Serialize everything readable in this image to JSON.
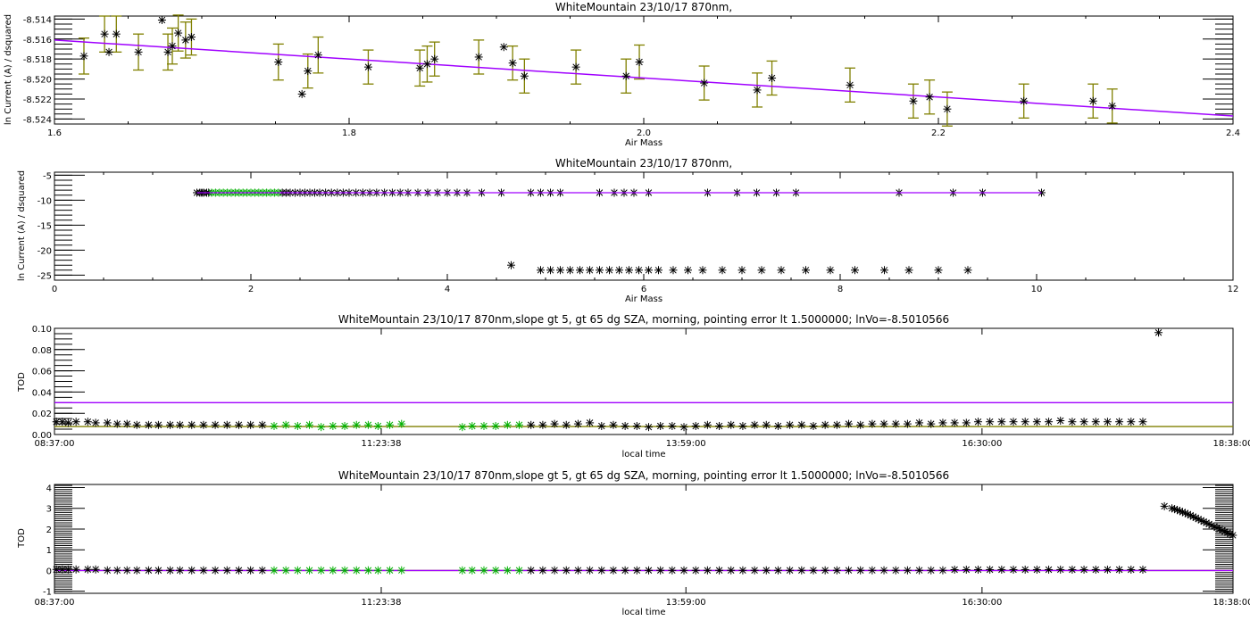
{
  "chart_data": [
    {
      "type": "scatter",
      "title": "WhiteMountain 23/10/17 870nm,",
      "xlabel": "Air Mass",
      "ylabel": "ln Current (A) / dsquared",
      "xlim": [
        1.6,
        2.4
      ],
      "ylim": [
        -8.5245,
        -8.5137
      ],
      "xticks": [
        {
          "v": 1.6,
          "label": "1.6"
        },
        {
          "v": 1.8,
          "label": "1.8"
        },
        {
          "v": 2.0,
          "label": "2.0"
        },
        {
          "v": 2.2,
          "label": "2.2"
        },
        {
          "v": 2.4,
          "label": "2.4"
        }
      ],
      "xminor": 0.05,
      "yticks": [
        {
          "v": -8.524,
          "label": "-8.524"
        },
        {
          "v": -8.522,
          "label": "-8.522"
        },
        {
          "v": -8.52,
          "label": "-8.520"
        },
        {
          "v": -8.518,
          "label": "-8.518"
        },
        {
          "v": -8.516,
          "label": "-8.516"
        },
        {
          "v": -8.514,
          "label": "-8.514"
        }
      ],
      "yminor": 0.0005,
      "right_ticks": true,
      "points": [
        [
          1.62,
          -8.5177,
          0.0018
        ],
        [
          1.634,
          -8.5155,
          0.0018
        ],
        [
          1.637,
          -8.5173,
          0
        ],
        [
          1.642,
          -8.5155,
          0.0018
        ],
        [
          1.657,
          -8.5173,
          0.0018
        ],
        [
          1.673,
          -8.5141,
          0
        ],
        [
          1.677,
          -8.5173,
          0.0018
        ],
        [
          1.68,
          -8.5167,
          0.0018
        ],
        [
          1.684,
          -8.5154,
          0.0018
        ],
        [
          1.689,
          -8.5161,
          0.0018
        ],
        [
          1.693,
          -8.5158,
          0.0018
        ],
        [
          1.752,
          -8.5183,
          0.0018
        ],
        [
          1.768,
          -8.5215,
          0
        ],
        [
          1.772,
          -8.5192,
          0.0017
        ],
        [
          1.779,
          -8.5176,
          0.0018
        ],
        [
          1.813,
          -8.5188,
          0.0017
        ],
        [
          1.848,
          -8.5189,
          0.0018
        ],
        [
          1.853,
          -8.5185,
          0.0018
        ],
        [
          1.858,
          -8.518,
          0.0017
        ],
        [
          1.888,
          -8.5178,
          0.0017
        ],
        [
          1.905,
          -8.5168,
          0
        ],
        [
          1.911,
          -8.5184,
          0.0017
        ],
        [
          1.919,
          -8.5197,
          0.0017
        ],
        [
          1.954,
          -8.5188,
          0.0017
        ],
        [
          1.988,
          -8.5197,
          0.0017
        ],
        [
          1.997,
          -8.5183,
          0.0017
        ],
        [
          2.041,
          -8.5204,
          0.0017
        ],
        [
          2.077,
          -8.5211,
          0.0017
        ],
        [
          2.087,
          -8.5199,
          0.0017
        ],
        [
          2.14,
          -8.5206,
          0.0017
        ],
        [
          2.183,
          -8.5222,
          0.0017
        ],
        [
          2.194,
          -8.5218,
          0.0017
        ],
        [
          2.206,
          -8.523,
          0.0017
        ],
        [
          2.258,
          -8.5222,
          0.0017
        ],
        [
          2.305,
          -8.5222,
          0.0017
        ],
        [
          2.318,
          -8.5227,
          0.0017
        ]
      ],
      "fit_line": [
        [
          1.6,
          -8.5161
        ],
        [
          2.4,
          -8.5237
        ]
      ]
    },
    {
      "type": "scatter",
      "title": "WhiteMountain 23/10/17 870nm,",
      "xlabel": "Air Mass",
      "ylabel": "ln Current (A) / dsquared",
      "xlim": [
        0,
        12
      ],
      "ylim": [
        -26,
        -4.4
      ],
      "xticks": [
        {
          "v": 0,
          "label": "0"
        },
        {
          "v": 2,
          "label": "2"
        },
        {
          "v": 4,
          "label": "4"
        },
        {
          "v": 6,
          "label": "6"
        },
        {
          "v": 8,
          "label": "8"
        },
        {
          "v": 10,
          "label": "10"
        },
        {
          "v": 12,
          "label": "12"
        }
      ],
      "xminor": 0.5,
      "yticks": [
        {
          "v": -25,
          "label": "-25"
        },
        {
          "v": -20,
          "label": "-20"
        },
        {
          "v": -15,
          "label": "-15"
        },
        {
          "v": -10,
          "label": "-10"
        },
        {
          "v": -5,
          "label": "-5"
        }
      ],
      "yminor": 1,
      "upper_black_x": [
        1.45,
        1.48,
        1.5,
        1.52,
        1.55,
        1.57,
        2.32,
        2.36,
        2.4,
        2.45,
        2.5,
        2.55,
        2.6,
        2.65,
        2.7,
        2.76,
        2.82,
        2.88,
        2.94,
        3.0,
        3.07,
        3.14,
        3.21,
        3.28,
        3.36,
        3.44,
        3.52,
        3.6,
        3.7,
        3.8,
        3.9,
        4.0,
        4.1,
        4.2,
        4.35,
        4.55,
        4.85,
        4.95,
        5.05,
        5.15,
        5.55,
        5.7,
        5.8,
        5.9,
        6.05,
        6.65,
        6.95,
        7.15,
        7.35,
        7.55,
        8.6,
        9.15,
        9.45,
        10.05
      ],
      "upper_value": -8.5,
      "upper_green_x": [
        1.6,
        1.64,
        1.68,
        1.72,
        1.76,
        1.8,
        1.84,
        1.88,
        1.92,
        1.96,
        2.0,
        2.04,
        2.08,
        2.12,
        2.16,
        2.2,
        2.24,
        2.28
      ],
      "lower_points": [
        [
          4.65,
          -23
        ],
        [
          4.95,
          -24
        ],
        [
          5.05,
          -24
        ],
        [
          5.15,
          -24
        ],
        [
          5.25,
          -24
        ],
        [
          5.35,
          -24
        ],
        [
          5.45,
          -24
        ],
        [
          5.55,
          -24
        ],
        [
          5.65,
          -24
        ],
        [
          5.75,
          -24
        ],
        [
          5.85,
          -24
        ],
        [
          5.95,
          -24
        ],
        [
          6.05,
          -24
        ],
        [
          6.15,
          -24
        ],
        [
          6.3,
          -24
        ],
        [
          6.45,
          -24
        ],
        [
          6.6,
          -24
        ],
        [
          6.8,
          -24
        ],
        [
          7.0,
          -24
        ],
        [
          7.2,
          -24
        ],
        [
          7.4,
          -24
        ],
        [
          7.65,
          -24
        ],
        [
          7.9,
          -24
        ],
        [
          8.15,
          -24
        ],
        [
          8.45,
          -24
        ],
        [
          8.7,
          -24
        ],
        [
          9.0,
          -24
        ],
        [
          9.3,
          -24
        ]
      ],
      "fit_line": [
        [
          1.45,
          -8.5
        ],
        [
          10.05,
          -8.5
        ]
      ]
    },
    {
      "type": "scatter",
      "title": "WhiteMountain 23/10/17 870nm,slope gt 5, gt 65 dg SZA, morning, pointing error lt 1.5000000; lnVo=-8.5010566",
      "xlabel": "local time",
      "ylabel": "TOD",
      "xlim": [
        "08:37:00",
        "18:38:00"
      ],
      "ylim": [
        0,
        0.1
      ],
      "xticks": [
        {
          "v": "08:37:00",
          "label": "08:37:00"
        },
        {
          "v": "11:23:38",
          "label": "11:23:38"
        },
        {
          "v": "13:59:00",
          "label": "13:59:00"
        },
        {
          "v": "16:30:00",
          "label": "16:30:00"
        },
        {
          "v": "18:38:00",
          "label": "18:38:00"
        }
      ],
      "yticks": [
        {
          "v": 0,
          "label": "0.00"
        },
        {
          "v": 0.02,
          "label": "0.02"
        },
        {
          "v": 0.04,
          "label": "0.04"
        },
        {
          "v": 0.06,
          "label": "0.06"
        },
        {
          "v": 0.08,
          "label": "0.08"
        },
        {
          "v": 0.1,
          "label": "0.10"
        }
      ],
      "yminor": 0.005,
      "black_early": {
        "times": [
          "08:38",
          "08:41",
          "08:44",
          "08:48",
          "08:54",
          "08:58",
          "09:04",
          "09:09",
          "09:14",
          "09:19",
          "09:25",
          "09:30",
          "09:36",
          "09:41",
          "09:47",
          "09:53",
          "09:59",
          "10:05",
          "10:11",
          "10:17",
          "10:23"
        ],
        "values": [
          0.012,
          0.012,
          0.011,
          0.012,
          0.012,
          0.011,
          0.011,
          0.01,
          0.01,
          0.009,
          0.009,
          0.009,
          0.009,
          0.009,
          0.009,
          0.009,
          0.009,
          0.009,
          0.009,
          0.009,
          0.009
        ]
      },
      "green": {
        "times": [
          "10:29",
          "10:35",
          "10:41",
          "10:47",
          "10:53",
          "10:59",
          "11:05",
          "11:11",
          "11:17",
          "11:22",
          "11:28",
          "11:34",
          "12:05",
          "12:10",
          "12:16",
          "12:22",
          "12:28",
          "12:34"
        ],
        "values": [
          0.008,
          0.009,
          0.008,
          0.009,
          0.007,
          0.008,
          0.008,
          0.009,
          0.009,
          0.008,
          0.009,
          0.01,
          0.007,
          0.008,
          0.008,
          0.008,
          0.009,
          0.009
        ]
      },
      "black_late": {
        "start": "12:40",
        "step_min": 6,
        "values": [
          0.009,
          0.009,
          0.01,
          0.009,
          0.01,
          0.011,
          0.008,
          0.009,
          0.008,
          0.008,
          0.007,
          0.008,
          0.008,
          0.007,
          0.008,
          0.009,
          0.008,
          0.009,
          0.008,
          0.009,
          0.009,
          0.008,
          0.009,
          0.009,
          0.008,
          0.009,
          0.009,
          0.01,
          0.009,
          0.01,
          0.01,
          0.01,
          0.01,
          0.011,
          0.01,
          0.011,
          0.011,
          0.011,
          0.012,
          0.012,
          0.012,
          0.012,
          0.012,
          0.012,
          0.012,
          0.013,
          0.012,
          0.012,
          0.012,
          0.012,
          0.012,
          0.012,
          0.012
        ]
      },
      "outliers": [
        [
          "18:00",
          0.096
        ]
      ],
      "lines": [
        {
          "value": 0.03,
          "color": "#a000ff"
        },
        {
          "value": 0.0075,
          "color": "#808000"
        }
      ]
    },
    {
      "type": "scatter",
      "title": "WhiteMountain 23/10/17 870nm,slope gt 5, gt 65 dg SZA, morning, pointing error lt 1.5000000; lnVo=-8.5010566",
      "xlabel": "local time",
      "ylabel": "TOD",
      "xlim": [
        "08:37:00",
        "18:38:00"
      ],
      "ylim": [
        -1.1,
        4.15
      ],
      "xticks": [
        {
          "v": "08:37:00",
          "label": "08:37:00"
        },
        {
          "v": "11:23:38",
          "label": "11:23:38"
        },
        {
          "v": "13:59:00",
          "label": "13:59:00"
        },
        {
          "v": "16:30:00",
          "label": "16:30:00"
        },
        {
          "v": "18:38:00",
          "label": "18:38:00"
        }
      ],
      "yticks": [
        {
          "v": -1,
          "label": "-1"
        },
        {
          "v": 0,
          "label": "0"
        },
        {
          "v": 1,
          "label": "1"
        },
        {
          "v": 2,
          "label": "2"
        },
        {
          "v": 3,
          "label": "3"
        },
        {
          "v": 4,
          "label": "4"
        }
      ],
      "yminor": 0.1,
      "same_points_as_panel": 3,
      "tail": {
        "start": "18:03",
        "step_min": 1.35,
        "values": [
          3.1,
          3.0,
          2.96,
          2.92,
          2.87,
          2.82,
          2.77,
          2.72,
          2.66,
          2.6,
          2.54,
          2.48,
          2.42,
          2.36,
          2.3,
          2.24,
          2.18,
          2.12,
          2.06,
          2.0,
          1.94,
          1.88,
          1.82,
          1.76,
          1.7,
          1.64
        ]
      },
      "lines": [
        {
          "value": 0.0,
          "color": "#808000"
        },
        {
          "value": 0.0,
          "color": "#a000ff"
        }
      ]
    }
  ],
  "colors": {
    "fit": "#a000ff",
    "errorbar": "#808000",
    "flagged": "#00b000",
    "points": "#000000"
  }
}
